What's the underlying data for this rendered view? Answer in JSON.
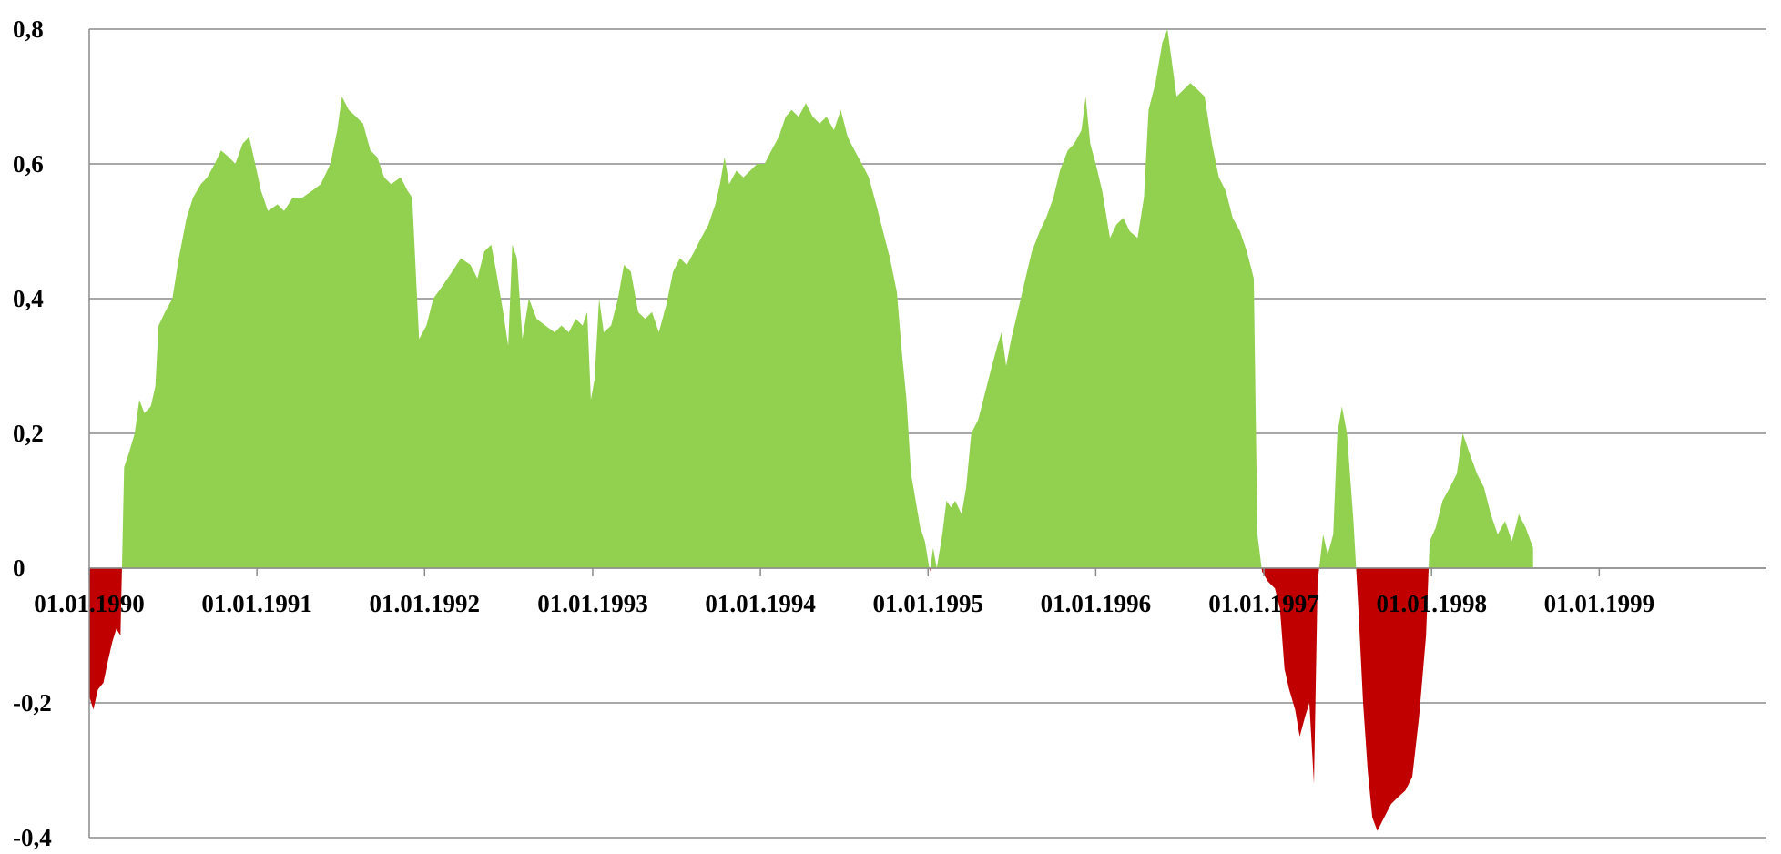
{
  "chart_data": {
    "type": "area",
    "title": "",
    "xlabel": "",
    "ylabel": "",
    "x_range": [
      "1990-01-01",
      "1999-12-31"
    ],
    "ylim": [
      -0.4,
      0.8
    ],
    "y_ticks": [
      -0.4,
      -0.2,
      0,
      0.2,
      0.4,
      0.6,
      0.8
    ],
    "y_tick_labels": [
      "-0,4",
      "-0,2",
      "0",
      "0,2",
      "0,4",
      "0,6",
      "0,8"
    ],
    "x_tick_labels": [
      "01.01.1990",
      "01.01.1991",
      "01.01.1992",
      "01.01.1993",
      "01.01.1994",
      "01.01.1995",
      "01.01.1996",
      "01.01.1997",
      "01.01.1998",
      "01.01.1999"
    ],
    "grid": true,
    "legend": "none",
    "colors": {
      "positive": "#92d050",
      "negative": "#c00000"
    },
    "series": [
      {
        "points": [
          [
            "1990-01-01",
            -0.19
          ],
          [
            "1990-01-10",
            -0.21
          ],
          [
            "1990-01-20",
            -0.18
          ],
          [
            "1990-02-01",
            -0.17
          ],
          [
            "1990-02-10",
            -0.14
          ],
          [
            "1990-02-20",
            -0.11
          ],
          [
            "1990-03-01",
            -0.09
          ],
          [
            "1990-03-10",
            -0.1
          ],
          [
            "1990-03-18",
            0.15
          ],
          [
            "1990-03-28",
            0.17
          ],
          [
            "1990-04-10",
            0.2
          ],
          [
            "1990-04-20",
            0.25
          ],
          [
            "1990-05-01",
            0.23
          ],
          [
            "1990-05-15",
            0.24
          ],
          [
            "1990-05-25",
            0.27
          ],
          [
            "1990-06-01",
            0.36
          ],
          [
            "1990-06-15",
            0.38
          ],
          [
            "1990-07-01",
            0.4
          ],
          [
            "1990-07-15",
            0.46
          ],
          [
            "1990-08-01",
            0.52
          ],
          [
            "1990-08-15",
            0.55
          ],
          [
            "1990-09-01",
            0.57
          ],
          [
            "1990-09-15",
            0.58
          ],
          [
            "1990-10-01",
            0.6
          ],
          [
            "1990-10-15",
            0.62
          ],
          [
            "1990-11-01",
            0.61
          ],
          [
            "1990-11-15",
            0.6
          ],
          [
            "1990-12-01",
            0.63
          ],
          [
            "1990-12-15",
            0.64
          ],
          [
            "1990-12-25",
            0.61
          ],
          [
            "1991-01-10",
            0.56
          ],
          [
            "1991-01-25",
            0.53
          ],
          [
            "1991-02-15",
            0.54
          ],
          [
            "1991-03-01",
            0.53
          ],
          [
            "1991-03-20",
            0.55
          ],
          [
            "1991-04-10",
            0.55
          ],
          [
            "1991-05-01",
            0.56
          ],
          [
            "1991-05-20",
            0.57
          ],
          [
            "1991-06-10",
            0.6
          ],
          [
            "1991-06-25",
            0.65
          ],
          [
            "1991-07-05",
            0.7
          ],
          [
            "1991-07-20",
            0.68
          ],
          [
            "1991-08-05",
            0.67
          ],
          [
            "1991-08-20",
            0.66
          ],
          [
            "1991-09-05",
            0.62
          ],
          [
            "1991-09-20",
            0.61
          ],
          [
            "1991-10-05",
            0.58
          ],
          [
            "1991-10-20",
            0.57
          ],
          [
            "1991-11-10",
            0.58
          ],
          [
            "1991-11-25",
            0.56
          ],
          [
            "1991-12-05",
            0.55
          ],
          [
            "1991-12-20",
            0.34
          ],
          [
            "1992-01-05",
            0.36
          ],
          [
            "1992-01-20",
            0.4
          ],
          [
            "1992-02-10",
            0.42
          ],
          [
            "1992-03-01",
            0.44
          ],
          [
            "1992-03-20",
            0.46
          ],
          [
            "1992-04-10",
            0.45
          ],
          [
            "1992-04-25",
            0.43
          ],
          [
            "1992-05-10",
            0.47
          ],
          [
            "1992-05-25",
            0.48
          ],
          [
            "1992-06-05",
            0.44
          ],
          [
            "1992-06-20",
            0.38
          ],
          [
            "1992-07-01",
            0.33
          ],
          [
            "1992-07-10",
            0.48
          ],
          [
            "1992-07-20",
            0.46
          ],
          [
            "1992-08-01",
            0.34
          ],
          [
            "1992-08-15",
            0.4
          ],
          [
            "1992-09-01",
            0.37
          ],
          [
            "1992-09-20",
            0.36
          ],
          [
            "1992-10-10",
            0.35
          ],
          [
            "1992-10-25",
            0.36
          ],
          [
            "1992-11-10",
            0.35
          ],
          [
            "1992-11-25",
            0.37
          ],
          [
            "1992-12-10",
            0.36
          ],
          [
            "1992-12-20",
            0.38
          ],
          [
            "1992-12-28",
            0.25
          ],
          [
            "1993-01-05",
            0.28
          ],
          [
            "1993-01-15",
            0.4
          ],
          [
            "1993-01-25",
            0.35
          ],
          [
            "1993-02-10",
            0.36
          ],
          [
            "1993-02-25",
            0.4
          ],
          [
            "1993-03-10",
            0.45
          ],
          [
            "1993-03-25",
            0.44
          ],
          [
            "1993-04-10",
            0.38
          ],
          [
            "1993-04-25",
            0.37
          ],
          [
            "1993-05-10",
            0.38
          ],
          [
            "1993-05-25",
            0.35
          ],
          [
            "1993-06-10",
            0.39
          ],
          [
            "1993-06-25",
            0.44
          ],
          [
            "1993-07-10",
            0.46
          ],
          [
            "1993-07-25",
            0.45
          ],
          [
            "1993-08-10",
            0.47
          ],
          [
            "1993-08-25",
            0.49
          ],
          [
            "1993-09-10",
            0.51
          ],
          [
            "1993-09-25",
            0.54
          ],
          [
            "1993-10-05",
            0.57
          ],
          [
            "1993-10-15",
            0.61
          ],
          [
            "1993-10-25",
            0.57
          ],
          [
            "1993-11-10",
            0.59
          ],
          [
            "1993-11-25",
            0.58
          ],
          [
            "1993-12-10",
            0.59
          ],
          [
            "1993-12-25",
            0.6
          ],
          [
            "1994-01-10",
            0.6
          ],
          [
            "1994-01-25",
            0.62
          ],
          [
            "1994-02-10",
            0.64
          ],
          [
            "1994-02-25",
            0.67
          ],
          [
            "1994-03-10",
            0.68
          ],
          [
            "1994-03-25",
            0.67
          ],
          [
            "1994-04-10",
            0.69
          ],
          [
            "1994-04-25",
            0.67
          ],
          [
            "1994-05-10",
            0.66
          ],
          [
            "1994-05-25",
            0.67
          ],
          [
            "1994-06-10",
            0.65
          ],
          [
            "1994-06-25",
            0.68
          ],
          [
            "1994-07-10",
            0.64
          ],
          [
            "1994-07-25",
            0.62
          ],
          [
            "1994-08-10",
            0.6
          ],
          [
            "1994-08-25",
            0.58
          ],
          [
            "1994-09-10",
            0.54
          ],
          [
            "1994-09-25",
            0.5
          ],
          [
            "1994-10-10",
            0.46
          ],
          [
            "1994-10-25",
            0.41
          ],
          [
            "1994-11-05",
            0.32
          ],
          [
            "1994-11-15",
            0.25
          ],
          [
            "1994-11-25",
            0.14
          ],
          [
            "1994-12-05",
            0.1
          ],
          [
            "1994-12-15",
            0.06
          ],
          [
            "1994-12-25",
            0.04
          ],
          [
            "1995-01-05",
            -0.005
          ],
          [
            "1995-01-12",
            0.03
          ],
          [
            "1995-01-20",
            0.0
          ],
          [
            "1995-02-01",
            0.05
          ],
          [
            "1995-02-10",
            0.1
          ],
          [
            "1995-02-20",
            0.09
          ],
          [
            "1995-03-01",
            0.1
          ],
          [
            "1995-03-15",
            0.08
          ],
          [
            "1995-03-25",
            0.12
          ],
          [
            "1995-04-05",
            0.2
          ],
          [
            "1995-04-20",
            0.22
          ],
          [
            "1995-05-05",
            0.26
          ],
          [
            "1995-05-20",
            0.3
          ],
          [
            "1995-06-01",
            0.33
          ],
          [
            "1995-06-10",
            0.35
          ],
          [
            "1995-06-20",
            0.3
          ],
          [
            "1995-07-01",
            0.34
          ],
          [
            "1995-07-15",
            0.38
          ],
          [
            "1995-08-01",
            0.43
          ],
          [
            "1995-08-15",
            0.47
          ],
          [
            "1995-09-01",
            0.5
          ],
          [
            "1995-09-15",
            0.52
          ],
          [
            "1995-10-01",
            0.55
          ],
          [
            "1995-10-15",
            0.59
          ],
          [
            "1995-11-01",
            0.62
          ],
          [
            "1995-11-15",
            0.63
          ],
          [
            "1995-12-01",
            0.65
          ],
          [
            "1995-12-10",
            0.7
          ],
          [
            "1995-12-20",
            0.63
          ],
          [
            "1996-01-01",
            0.6
          ],
          [
            "1996-01-15",
            0.56
          ],
          [
            "1996-02-01",
            0.49
          ],
          [
            "1996-02-15",
            0.51
          ],
          [
            "1996-03-01",
            0.52
          ],
          [
            "1996-03-15",
            0.5
          ],
          [
            "1996-04-01",
            0.49
          ],
          [
            "1996-04-15",
            0.55
          ],
          [
            "1996-04-25",
            0.68
          ],
          [
            "1996-05-10",
            0.72
          ],
          [
            "1996-05-25",
            0.78
          ],
          [
            "1996-06-05",
            0.8
          ],
          [
            "1996-06-15",
            0.75
          ],
          [
            "1996-06-25",
            0.7
          ],
          [
            "1996-07-10",
            0.71
          ],
          [
            "1996-07-25",
            0.72
          ],
          [
            "1996-08-10",
            0.71
          ],
          [
            "1996-08-25",
            0.7
          ],
          [
            "1996-09-10",
            0.63
          ],
          [
            "1996-09-25",
            0.58
          ],
          [
            "1996-10-10",
            0.56
          ],
          [
            "1996-10-25",
            0.52
          ],
          [
            "1996-11-10",
            0.5
          ],
          [
            "1996-11-25",
            0.47
          ],
          [
            "1996-12-10",
            0.43
          ],
          [
            "1996-12-18",
            0.05
          ],
          [
            "1996-12-28",
            -0.005
          ],
          [
            "1997-01-10",
            -0.02
          ],
          [
            "1997-01-25",
            -0.03
          ],
          [
            "1997-02-05",
            -0.06
          ],
          [
            "1997-02-15",
            -0.15
          ],
          [
            "1997-02-25",
            -0.18
          ],
          [
            "1997-03-10",
            -0.21
          ],
          [
            "1997-03-20",
            -0.25
          ],
          [
            "1997-04-01",
            -0.22
          ],
          [
            "1997-04-10",
            -0.2
          ],
          [
            "1997-04-20",
            -0.32
          ],
          [
            "1997-04-28",
            -0.02
          ],
          [
            "1997-05-10",
            0.05
          ],
          [
            "1997-05-20",
            0.02
          ],
          [
            "1997-06-01",
            0.05
          ],
          [
            "1997-06-10",
            0.2
          ],
          [
            "1997-06-20",
            0.24
          ],
          [
            "1997-07-01",
            0.2
          ],
          [
            "1997-07-15",
            0.07
          ],
          [
            "1997-07-25",
            -0.05
          ],
          [
            "1997-08-05",
            -0.2
          ],
          [
            "1997-08-15",
            -0.3
          ],
          [
            "1997-08-25",
            -0.37
          ],
          [
            "1997-09-05",
            -0.39
          ],
          [
            "1997-09-20",
            -0.37
          ],
          [
            "1997-10-05",
            -0.35
          ],
          [
            "1997-10-20",
            -0.34
          ],
          [
            "1997-11-05",
            -0.33
          ],
          [
            "1997-11-20",
            -0.31
          ],
          [
            "1997-12-05",
            -0.22
          ],
          [
            "1997-12-20",
            -0.1
          ],
          [
            "1997-12-28",
            0.04
          ],
          [
            "1998-01-10",
            0.06
          ],
          [
            "1998-01-25",
            0.1
          ],
          [
            "1998-02-10",
            0.12
          ],
          [
            "1998-02-25",
            0.14
          ],
          [
            "1998-03-10",
            0.2
          ],
          [
            "1998-03-25",
            0.17
          ],
          [
            "1998-04-10",
            0.14
          ],
          [
            "1998-04-25",
            0.12
          ],
          [
            "1998-05-10",
            0.08
          ],
          [
            "1998-05-25",
            0.05
          ],
          [
            "1998-06-10",
            0.07
          ],
          [
            "1998-06-25",
            0.04
          ],
          [
            "1998-07-10",
            0.08
          ],
          [
            "1998-07-25",
            0.06
          ],
          [
            "1998-08-10",
            0.03
          ]
        ]
      }
    ]
  }
}
